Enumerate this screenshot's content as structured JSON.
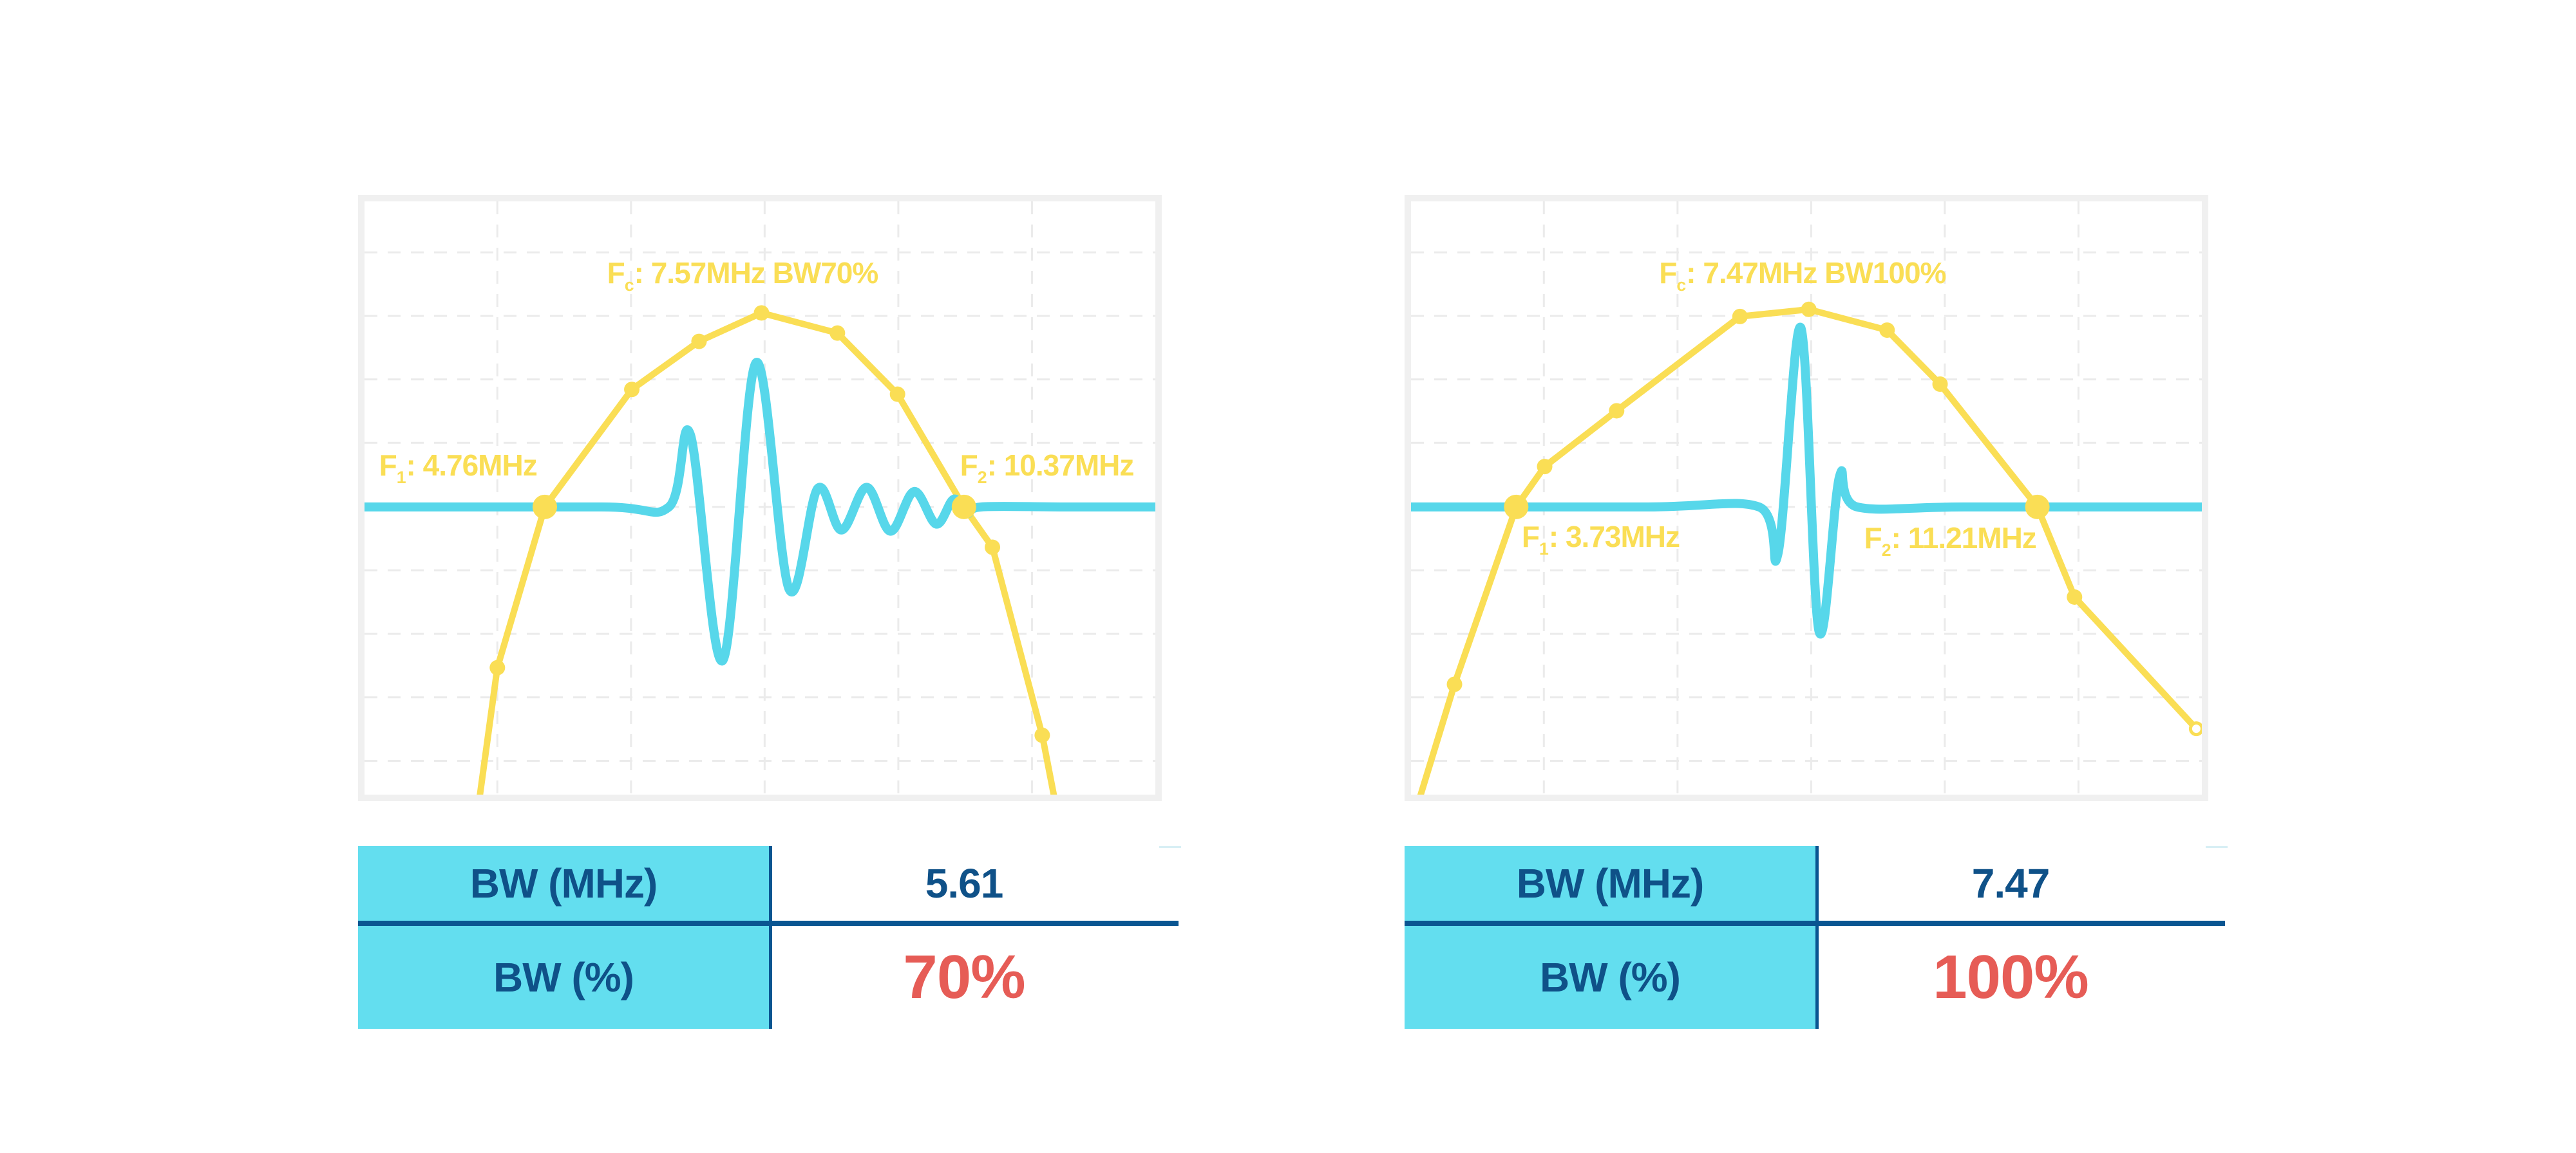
{
  "colors": {
    "spectrum_yellow": "#FADE55",
    "pulse_cyan": "#57D7EA",
    "table_cell_cyan": "#63DEEF",
    "navy_line": "#0A5591",
    "navy_text": "#0F5188",
    "status_red": "#E65C56",
    "chart_border": "#F0F0F0",
    "grid": "#EBEBEB",
    "table_toprule": "#D8EFF5"
  },
  "panels": [
    {
      "annotations": {
        "fc": {
          "prefix": "F",
          "sub": "c",
          "rest": ": 7.57MHz BW70%"
        },
        "f1": {
          "prefix": "F",
          "sub": "1",
          "rest": ": 4.76MHz"
        },
        "f2": {
          "prefix": "F",
          "sub": "2",
          "rest": ": 10.37MHz"
        }
      },
      "table": {
        "row1_label": "BW (MHz)",
        "row1_value": "5.61",
        "row2_label": "BW (%)",
        "row2_value": "70%"
      }
    },
    {
      "annotations": {
        "fc": {
          "prefix": "F",
          "sub": "c",
          "rest": ": 7.47MHz BW100%"
        },
        "f1": {
          "prefix": "F",
          "sub": "1",
          "rest": ": 3.73MHz"
        },
        "f2": {
          "prefix": "F",
          "sub": "2",
          "rest": ": 11.21MHz"
        }
      },
      "table": {
        "row1_label": "BW (MHz)",
        "row1_value": "7.47",
        "row2_label": "BW (%)",
        "row2_value": "100%"
      }
    }
  ],
  "chart_data": [
    {
      "type": "line",
      "title": "Fc: 7.57MHz BW70%",
      "annotations": [
        "F1: 4.76MHz",
        "F2: 10.37MHz"
      ],
      "fc_mhz": 7.57,
      "f1_mhz": 4.76,
      "f2_mhz": 10.37,
      "bw_mhz": 5.61,
      "bw_pct": 70,
      "baseline_pct": 51.5,
      "grid": {
        "style": "dashed",
        "vertical_pct": [
          16.8,
          33.7,
          50.6,
          67.5,
          84.4
        ],
        "horizontal_pct": [
          8.6,
          19.3,
          30.0,
          40.7,
          51.5,
          62.2,
          72.9,
          83.6,
          94.3
        ]
      },
      "series": [
        {
          "name": "spectrum",
          "color_key": "spectrum_yellow",
          "points_pct": [
            [
              14.5,
              101
            ],
            [
              16.8,
              78.6
            ],
            [
              22.8,
              51.5
            ],
            [
              33.8,
              31.7
            ],
            [
              42.3,
              23.6
            ],
            [
              50.2,
              18.8
            ],
            [
              59.8,
              22.2
            ],
            [
              67.4,
              32.5
            ],
            [
              75.8,
              51.5
            ],
            [
              79.4,
              58.3
            ],
            [
              85.7,
              90
            ],
            [
              87.3,
              101
            ]
          ],
          "small_markers": [
            1,
            3,
            4,
            5,
            6,
            7,
            9,
            10
          ],
          "big_markers": [
            2,
            8
          ],
          "open_markers": []
        },
        {
          "name": "pulse-waveform",
          "color_key": "pulse_cyan",
          "smooth": true,
          "points_pct": [
            [
              0,
              51.5
            ],
            [
              30,
              51.5
            ],
            [
              38.5,
              51.5
            ],
            [
              41.2,
              39.3
            ],
            [
              45.3,
              77.4
            ],
            [
              49.5,
              27.2
            ],
            [
              53.7,
              65.4
            ],
            [
              57.3,
              48.4
            ],
            [
              60.3,
              55.4
            ],
            [
              63.5,
              48.2
            ],
            [
              66.5,
              55.6
            ],
            [
              69.5,
              48.9
            ],
            [
              72.3,
              54.4
            ],
            [
              74.5,
              50.2
            ],
            [
              76.2,
              52.6
            ],
            [
              78.0,
              51.5
            ],
            [
              88,
              51.5
            ],
            [
              100,
              51.5
            ]
          ]
        }
      ]
    },
    {
      "type": "line",
      "title": "Fc: 7.47MHz BW100%",
      "annotations": [
        "F1: 3.73MHz",
        "F2: 11.21MHz"
      ],
      "fc_mhz": 7.47,
      "f1_mhz": 3.73,
      "f2_mhz": 11.21,
      "bw_mhz": 7.47,
      "bw_pct": 100,
      "baseline_pct": 51.5,
      "grid": {
        "style": "dashed",
        "vertical_pct": [
          16.8,
          33.7,
          50.6,
          67.5,
          84.4
        ],
        "horizontal_pct": [
          8.6,
          19.3,
          30.0,
          40.7,
          51.5,
          62.2,
          72.9,
          83.6,
          94.3
        ]
      },
      "series": [
        {
          "name": "spectrum",
          "color_key": "spectrum_yellow",
          "points_pct": [
            [
              1,
              101
            ],
            [
              5.5,
              81.4
            ],
            [
              13.3,
              51.5
            ],
            [
              16.9,
              44.7
            ],
            [
              26,
              35.3
            ],
            [
              41.6,
              19.4
            ],
            [
              50.3,
              18.2
            ],
            [
              60.2,
              21.7
            ],
            [
              66.9,
              30.8
            ],
            [
              79.2,
              51.5
            ],
            [
              83.9,
              66.7
            ],
            [
              99.3,
              88.9
            ]
          ],
          "small_markers": [
            1,
            3,
            4,
            5,
            6,
            7,
            8,
            10
          ],
          "big_markers": [
            2,
            9
          ],
          "open_markers": [
            11
          ]
        },
        {
          "name": "pulse-waveform",
          "color_key": "pulse_cyan",
          "smooth": true,
          "points_pct": [
            [
              0,
              51.5
            ],
            [
              30,
              51.5
            ],
            [
              44.0,
              51.5
            ],
            [
              46.4,
              59.4
            ],
            [
              49.3,
              21.3
            ],
            [
              51.6,
              72.5
            ],
            [
              54.2,
              46.3
            ],
            [
              56.4,
              51.5
            ],
            [
              70,
              51.5
            ],
            [
              100,
              51.5
            ]
          ]
        }
      ]
    }
  ]
}
